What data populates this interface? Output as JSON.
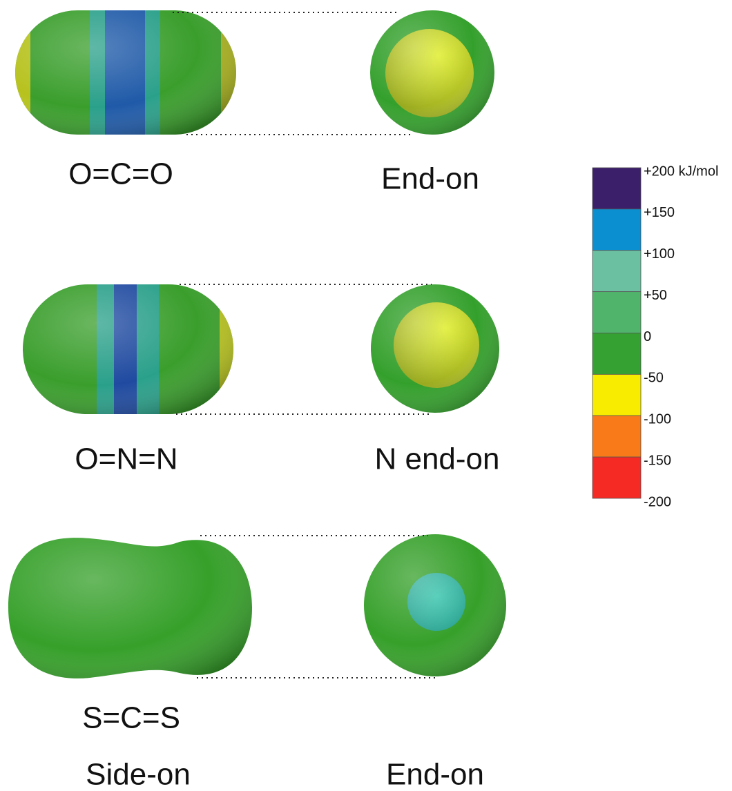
{
  "rows": [
    {
      "molecule": "O=C=O",
      "view": "End-on"
    },
    {
      "molecule": "O=N=N",
      "view": "N end-on"
    },
    {
      "molecule": "S=C=S",
      "side_view": "Side-on",
      "view": "End-on"
    }
  ],
  "colorbar": {
    "labels": [
      "+200 kJ/mol",
      "+150",
      "+100",
      "+50",
      "0",
      "-50",
      "-100",
      "-150",
      "-200"
    ],
    "colors": [
      "#3b1f6b",
      "#0b8fd0",
      "#6cc0a2",
      "#50b46a",
      "#36a133",
      "#f8ec00",
      "#f97a18",
      "#f52a25"
    ]
  }
}
